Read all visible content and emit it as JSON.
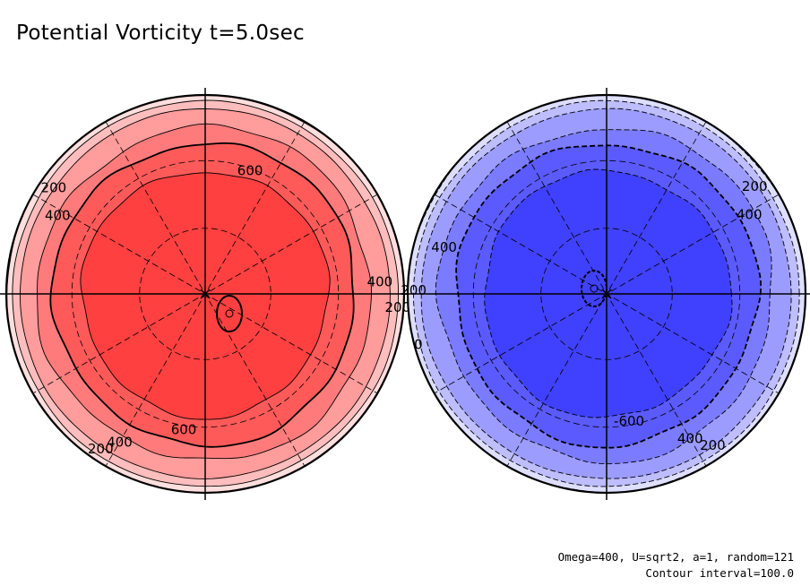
{
  "title": "Potential Vorticity t=5.0sec",
  "footer": {
    "params": "Omega=400, U=sqrt2, a=1, random=121",
    "interval": "Contour interval=100.0"
  },
  "chart_data": [
    {
      "type": "polar-contour",
      "hemisphere": "north",
      "color_scale": [
        "#ffdede",
        "#ffbdbd",
        "#ff9c9c",
        "#ff7b7b",
        "#ff5a5a",
        "#ff4040"
      ],
      "levels": [
        0,
        100,
        200,
        300,
        400,
        500,
        600,
        700
      ],
      "contour_labels": [
        {
          "text": "200",
          "r": 0.93,
          "theta": 145
        },
        {
          "text": "400",
          "r": 0.84,
          "theta": 152
        },
        {
          "text": "600",
          "r": 0.66,
          "theta": 70
        },
        {
          "text": "400",
          "r": 0.88,
          "theta": 4
        },
        {
          "text": "200",
          "r": 0.97,
          "theta": -4
        },
        {
          "text": "600",
          "r": 0.69,
          "theta": -99
        },
        {
          "text": "400",
          "r": 0.86,
          "theta": -120
        },
        {
          "text": "200",
          "r": 0.94,
          "theta": -124
        }
      ]
    },
    {
      "type": "polar-contour",
      "hemisphere": "south",
      "color_scale": [
        "#dedeff",
        "#bdbdff",
        "#9c9cff",
        "#7b7bff",
        "#5a5aff",
        "#4040ff"
      ],
      "levels": [
        0,
        -100,
        -200,
        -300,
        -400,
        -500,
        -600,
        -700
      ],
      "contour_labels": [
        {
          "text": "200",
          "r": 0.92,
          "theta": 36
        },
        {
          "text": "400",
          "r": 0.82,
          "theta": 29
        },
        {
          "text": "400",
          "r": 0.85,
          "theta": 164
        },
        {
          "text": "200",
          "r": 0.97,
          "theta": 179
        },
        {
          "text": "0",
          "r": 0.98,
          "theta": 195
        },
        {
          "text": "-600",
          "r": 0.65,
          "theta": -80
        },
        {
          "text": "400",
          "r": 0.84,
          "theta": -60
        },
        {
          "text": "200",
          "r": 0.93,
          "theta": -55
        }
      ]
    }
  ]
}
